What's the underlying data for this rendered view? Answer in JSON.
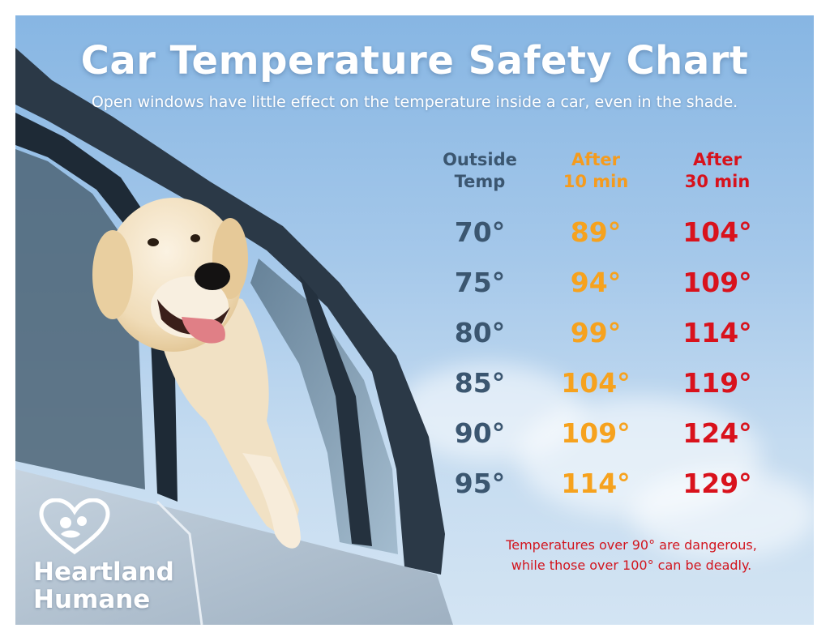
{
  "header": {
    "title": "Car Temperature Safety Chart",
    "subtitle": "Open windows have little effect on the temperature inside a car, even in the shade."
  },
  "table": {
    "headers": {
      "outside": [
        "Outside",
        "Temp"
      ],
      "after10": [
        "After",
        "10 min"
      ],
      "after30": [
        "After",
        "30 min"
      ]
    },
    "rows": [
      {
        "outside": "70°",
        "after10": "89°",
        "after30": "104°"
      },
      {
        "outside": "75°",
        "after10": "94°",
        "after30": "109°"
      },
      {
        "outside": "80°",
        "after10": "99°",
        "after30": "114°"
      },
      {
        "outside": "85°",
        "after10": "104°",
        "after30": "119°"
      },
      {
        "outside": "90°",
        "after10": "109°",
        "after30": "124°"
      },
      {
        "outside": "95°",
        "after10": "114°",
        "after30": "129°"
      }
    ]
  },
  "note": {
    "line1": "Temperatures over 90° are dangerous,",
    "line2": "while those over 100° can be deadly."
  },
  "logo": {
    "line1": "Heartland",
    "line2": "Humane",
    "icon": "heart-with-paws-icon"
  },
  "colors": {
    "outside": "#3b5670",
    "after10": "#f6a21e",
    "after30": "#d9121c"
  }
}
